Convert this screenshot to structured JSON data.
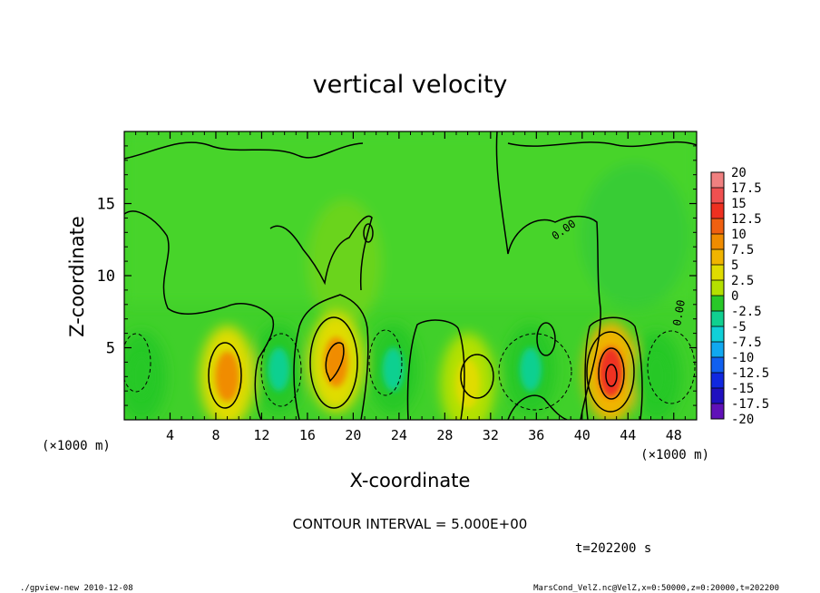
{
  "chart_data": {
    "type": "heatmap",
    "title": "vertical velocity",
    "xlabel": "X-coordinate",
    "ylabel": "Z-coordinate",
    "x_unit_label": "(×1000 m)",
    "z_unit_label": "(×1000 m)",
    "xlim": [
      0,
      50
    ],
    "ylim": [
      0,
      20
    ],
    "x_ticks": [
      "4",
      "8",
      "12",
      "16",
      "20",
      "24",
      "28",
      "32",
      "36",
      "40",
      "44",
      "48"
    ],
    "y_ticks": [
      "5",
      "10",
      "15"
    ],
    "x_tick_values": [
      4,
      8,
      12,
      16,
      20,
      24,
      28,
      32,
      36,
      40,
      44,
      48
    ],
    "y_tick_values": [
      5,
      10,
      15
    ],
    "colorbar_labels": [
      "20",
      "17.5",
      "15",
      "12.5",
      "10",
      "7.5",
      "5",
      "2.5",
      "0",
      "-2.5",
      "-5",
      "-7.5",
      "-10",
      "-12.5",
      "-15",
      "-17.5",
      "-20"
    ],
    "colorbar_values": [
      20,
      17.5,
      15,
      12.5,
      10,
      7.5,
      5,
      2.5,
      0,
      -2.5,
      -5,
      -7.5,
      -10,
      -12.5,
      -15,
      -17.5,
      -20
    ],
    "colorbar_colors": [
      "#f08080",
      "#f05050",
      "#ee3020",
      "#f06010",
      "#f08c00",
      "#f0b400",
      "#e0dc00",
      "#b4e000",
      "#78dc10",
      "#28c828",
      "#10d090",
      "#10d0d8",
      "#10a8f0",
      "#1060f0",
      "#1028e0",
      "#2010c0",
      "#6010b8"
    ],
    "contour_interval": "CONTOUR INTERVAL = 5.000E+00",
    "contour_label": "0.00",
    "time_label": "t=202200 s",
    "features": [
      {
        "x": 9.0,
        "z": 3.0,
        "value": 9,
        "kind": "updraft"
      },
      {
        "x": 18.5,
        "z": 4.0,
        "value": 10,
        "kind": "updraft"
      },
      {
        "x": 30.0,
        "z": 2.5,
        "value": 5,
        "kind": "updraft"
      },
      {
        "x": 42.5,
        "z": 3.3,
        "value": 14,
        "kind": "updraft"
      },
      {
        "x": 13.5,
        "z": 3.5,
        "value": -5,
        "kind": "downdraft"
      },
      {
        "x": 23.5,
        "z": 3.5,
        "value": -4,
        "kind": "downdraft"
      },
      {
        "x": 35.5,
        "z": 3.5,
        "value": -6,
        "kind": "downdraft"
      },
      {
        "x": 46.5,
        "z": 3.0,
        "value": -3,
        "kind": "downdraft"
      },
      {
        "x": 1.5,
        "z": 3.0,
        "value": -3,
        "kind": "downdraft"
      }
    ]
  },
  "footer": {
    "left": "./gpview-new  2010-12-08",
    "right": "MarsCond_VelZ.nc@VelZ,x=0:50000,z=0:20000,t=202200"
  }
}
